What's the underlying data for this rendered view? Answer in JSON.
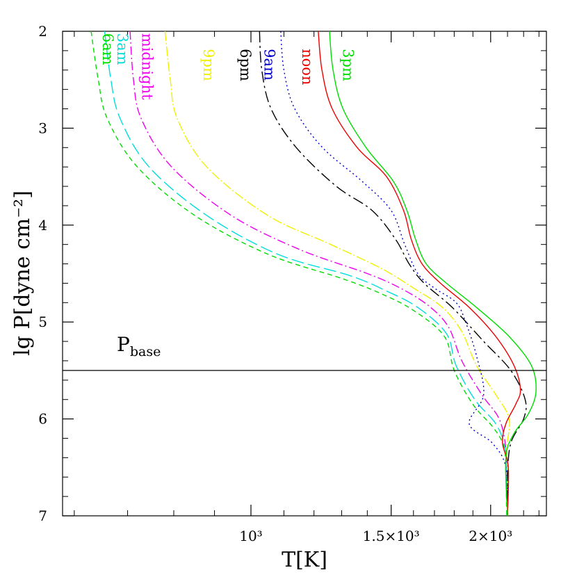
{
  "chart_data": {
    "type": "line",
    "xlabel": "T[K]",
    "ylabel": "lg P[dyne cm⁻²]",
    "xlim": [
      580,
      2350
    ],
    "ylim": [
      2,
      7
    ],
    "y_inverted": true,
    "x_ticks": [
      {
        "value": 1000,
        "label": "10³"
      },
      {
        "value": 1500,
        "label": "1.5×10³"
      },
      {
        "value": 2000,
        "label": "2×10³"
      }
    ],
    "y_ticks": [
      {
        "value": 2,
        "label": "2"
      },
      {
        "value": 3,
        "label": "3"
      },
      {
        "value": 4,
        "label": "4"
      },
      {
        "value": 5,
        "label": "5"
      },
      {
        "value": 6,
        "label": "6"
      },
      {
        "value": 7,
        "label": "7"
      }
    ],
    "grid": false,
    "reference_line": {
      "y": 5.5,
      "label": "P",
      "label_sub": "base"
    },
    "series": [
      {
        "name": "6am",
        "color": "#00dd00",
        "dash": "7,5",
        "points": [
          [
            630,
            2.0
          ],
          [
            643,
            2.5
          ],
          [
            660,
            2.9
          ],
          [
            720,
            3.4
          ],
          [
            850,
            3.9
          ],
          [
            1050,
            4.3
          ],
          [
            1300,
            4.55
          ],
          [
            1450,
            4.7
          ],
          [
            1600,
            4.88
          ],
          [
            1750,
            5.15
          ],
          [
            1800,
            5.5
          ],
          [
            1900,
            5.85
          ],
          [
            2020,
            6.1
          ],
          [
            2080,
            6.3
          ],
          [
            2090,
            6.6
          ],
          [
            2095,
            7.0
          ]
        ]
      },
      {
        "name": "3am",
        "color": "#00dddd",
        "dash": "18,6",
        "points": [
          [
            655,
            2.0
          ],
          [
            667,
            2.5
          ],
          [
            685,
            2.9
          ],
          [
            745,
            3.4
          ],
          [
            880,
            3.9
          ],
          [
            1080,
            4.3
          ],
          [
            1330,
            4.52
          ],
          [
            1480,
            4.68
          ],
          [
            1620,
            4.85
          ],
          [
            1760,
            5.12
          ],
          [
            1810,
            5.45
          ],
          [
            1910,
            5.8
          ],
          [
            2030,
            6.05
          ],
          [
            2085,
            6.3
          ],
          [
            2095,
            6.6
          ],
          [
            2098,
            7.0
          ]
        ]
      },
      {
        "name": "midnight",
        "color": "#ee00ee",
        "dash": "12,4,2,4",
        "points": [
          [
            705,
            2.0
          ],
          [
            712,
            2.5
          ],
          [
            728,
            2.9
          ],
          [
            795,
            3.4
          ],
          [
            945,
            3.9
          ],
          [
            1150,
            4.25
          ],
          [
            1400,
            4.5
          ],
          [
            1540,
            4.65
          ],
          [
            1670,
            4.83
          ],
          [
            1770,
            5.05
          ],
          [
            1840,
            5.4
          ],
          [
            1950,
            5.75
          ],
          [
            2050,
            6.0
          ],
          [
            2090,
            6.3
          ],
          [
            2098,
            6.6
          ],
          [
            2100,
            7.0
          ]
        ]
      },
      {
        "name": "9pm",
        "color": "#f0f000",
        "dash": "14,3,2,3",
        "points": [
          [
            780,
            2.0
          ],
          [
            792,
            2.5
          ],
          [
            808,
            2.9
          ],
          [
            880,
            3.4
          ],
          [
            1050,
            3.9
          ],
          [
            1260,
            4.2
          ],
          [
            1460,
            4.45
          ],
          [
            1600,
            4.65
          ],
          [
            1740,
            4.85
          ],
          [
            1840,
            5.1
          ],
          [
            1920,
            5.45
          ],
          [
            2030,
            5.75
          ],
          [
            2110,
            6.0
          ],
          [
            2095,
            6.3
          ],
          [
            2100,
            6.6
          ],
          [
            2102,
            7.0
          ]
        ]
      },
      {
        "name": "6pm",
        "color": "#000000",
        "dash": "16,5,3,5",
        "points": [
          [
            1025,
            2.0
          ],
          [
            1032,
            2.4
          ],
          [
            1060,
            2.8
          ],
          [
            1140,
            3.2
          ],
          [
            1280,
            3.6
          ],
          [
            1420,
            3.85
          ],
          [
            1520,
            4.15
          ],
          [
            1580,
            4.4
          ],
          [
            1650,
            4.6
          ],
          [
            1790,
            4.85
          ],
          [
            1960,
            5.2
          ],
          [
            2120,
            5.5
          ],
          [
            2210,
            5.8
          ],
          [
            2200,
            6.0
          ],
          [
            2120,
            6.25
          ],
          [
            2100,
            6.6
          ],
          [
            2100,
            7.0
          ]
        ]
      },
      {
        "name": "9am",
        "color": "#0000cc",
        "dash": "2,4",
        "points": [
          [
            1090,
            2.0
          ],
          [
            1100,
            2.4
          ],
          [
            1135,
            2.8
          ],
          [
            1230,
            3.2
          ],
          [
            1380,
            3.55
          ],
          [
            1500,
            3.85
          ],
          [
            1560,
            4.2
          ],
          [
            1620,
            4.5
          ],
          [
            1700,
            4.65
          ],
          [
            1810,
            4.8
          ],
          [
            1860,
            5.0
          ],
          [
            1920,
            5.35
          ],
          [
            1960,
            5.75
          ],
          [
            1880,
            6.05
          ],
          [
            2010,
            6.25
          ],
          [
            2090,
            6.5
          ],
          [
            2100,
            7.0
          ]
        ]
      },
      {
        "name": "noon",
        "color": "#ee0000",
        "dash": "",
        "points": [
          [
            1215,
            2.0
          ],
          [
            1228,
            2.4
          ],
          [
            1265,
            2.8
          ],
          [
            1360,
            3.2
          ],
          [
            1480,
            3.5
          ],
          [
            1555,
            3.85
          ],
          [
            1590,
            4.15
          ],
          [
            1640,
            4.4
          ],
          [
            1730,
            4.6
          ],
          [
            1880,
            4.85
          ],
          [
            2030,
            5.15
          ],
          [
            2140,
            5.45
          ],
          [
            2180,
            5.7
          ],
          [
            2150,
            5.85
          ],
          [
            2090,
            6.05
          ],
          [
            2070,
            6.25
          ],
          [
            2105,
            6.5
          ],
          [
            2100,
            7.0
          ]
        ]
      },
      {
        "name": "3pm",
        "color": "#00dd00",
        "dash": "",
        "points": [
          [
            1255,
            2.0
          ],
          [
            1268,
            2.4
          ],
          [
            1305,
            2.8
          ],
          [
            1395,
            3.2
          ],
          [
            1510,
            3.55
          ],
          [
            1570,
            3.85
          ],
          [
            1610,
            4.15
          ],
          [
            1660,
            4.4
          ],
          [
            1760,
            4.6
          ],
          [
            1920,
            4.85
          ],
          [
            2110,
            5.15
          ],
          [
            2250,
            5.45
          ],
          [
            2280,
            5.72
          ],
          [
            2230,
            5.95
          ],
          [
            2140,
            6.15
          ],
          [
            2090,
            6.4
          ],
          [
            2100,
            7.0
          ]
        ]
      }
    ],
    "series_labels": [
      {
        "text": "6am",
        "anchor": [
          652,
          2.02
        ]
      },
      {
        "text": "3am",
        "anchor": [
          680,
          2.02
        ]
      },
      {
        "text": "midnight",
        "anchor": [
          730,
          2.02
        ]
      },
      {
        "text": "9pm",
        "anchor": [
          872,
          2.18
        ]
      },
      {
        "text": "6pm",
        "anchor": [
          970,
          2.18
        ]
      },
      {
        "text": "9am",
        "anchor": [
          1040,
          2.18
        ]
      },
      {
        "text": "noon",
        "anchor": [
          1160,
          2.18
        ]
      },
      {
        "text": "3pm",
        "anchor": [
          1305,
          2.18
        ]
      }
    ]
  }
}
